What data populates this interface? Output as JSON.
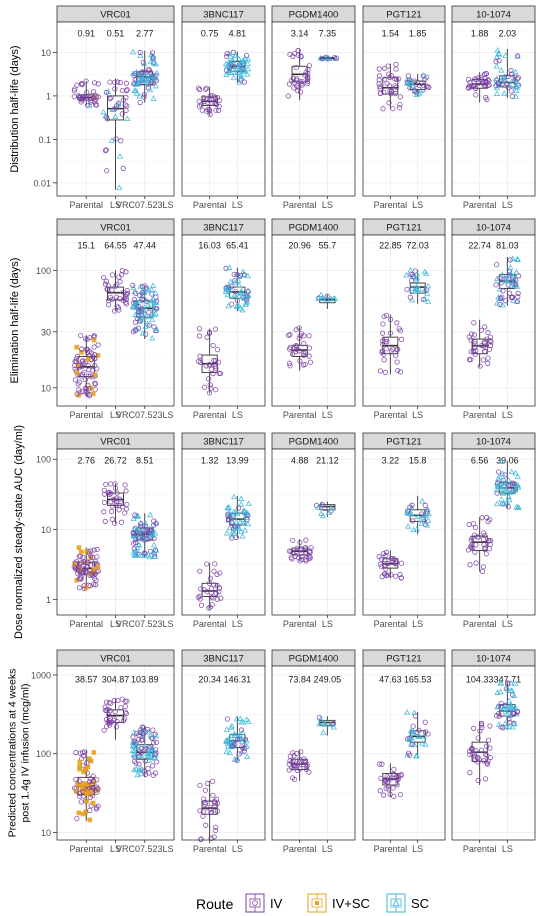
{
  "colors": {
    "IV": "#7B3FA5",
    "IV+SC": "#E6A11E",
    "SC": "#3BB7DA",
    "strip_fill": "#D9D9D9",
    "panel_border": "#333333",
    "grid": "#EBEBEB"
  },
  "legend": {
    "title": "Route",
    "items": [
      {
        "label": "IV",
        "key": "IV"
      },
      {
        "label": "IV+SC",
        "key": "IV+SC"
      },
      {
        "label": "SC",
        "key": "SC"
      }
    ]
  },
  "chart_data": [
    {
      "type": "box",
      "ylabel": "Distribution half-life (days)",
      "yscale": "log",
      "ylim": [
        0.005,
        50
      ],
      "yticks": [
        0.01,
        0.1,
        1,
        10
      ],
      "ytick_labels": [
        "0.01",
        "0.1",
        "1",
        "10"
      ],
      "panels": [
        {
          "title": "VRC01",
          "groups": [
            {
              "label": "Parental",
              "median_label": "0.91",
              "median": 0.91,
              "q1": 0.8,
              "q3": 1.05,
              "min": 0.6,
              "max": 2.2,
              "routes": {
                "IV": 0.8,
                "IV+SC": 0.1,
                "SC": 0.1
              },
              "n": 40
            },
            {
              "label": "LS",
              "median_label": "0.51",
              "median": 0.51,
              "q1": 0.28,
              "q3": 1.0,
              "min": 0.007,
              "max": 2.5,
              "routes": {
                "IV": 0.75,
                "SC": 0.25
              },
              "n": 40
            },
            {
              "label": "VRC07.523LS",
              "median_label": "2.77",
              "median": 2.77,
              "q1": 1.8,
              "q3": 3.6,
              "min": 0.7,
              "max": 11,
              "routes": {
                "IV": 0.5,
                "SC": 0.5
              },
              "n": 75
            }
          ]
        },
        {
          "title": "3BNC117",
          "groups": [
            {
              "label": "Parental",
              "median_label": "0.75",
              "median": 0.75,
              "q1": 0.6,
              "q3": 0.95,
              "min": 0.35,
              "max": 1.6,
              "routes": {
                "IV": 1
              },
              "n": 30
            },
            {
              "label": "LS",
              "median_label": "4.81",
              "median": 4.81,
              "q1": 3.7,
              "q3": 6.2,
              "min": 2.0,
              "max": 10.5,
              "routes": {
                "SC": 0.7,
                "IV": 0.3
              },
              "n": 55
            }
          ]
        },
        {
          "title": "PGDM1400",
          "groups": [
            {
              "label": "Parental",
              "median_label": "3.14",
              "median": 3.14,
              "q1": 2.1,
              "q3": 4.8,
              "min": 0.8,
              "max": 12,
              "routes": {
                "IV": 1
              },
              "n": 35
            },
            {
              "label": "LS",
              "median_label": "7.35",
              "median": 7.35,
              "q1": 7.1,
              "q3": 7.6,
              "min": 6.9,
              "max": 8.0,
              "routes": {
                "SC": 0.6,
                "IV": 0.4
              },
              "n": 10
            }
          ]
        },
        {
          "title": "PGT121",
          "groups": [
            {
              "label": "Parental",
              "median_label": "1.54",
              "median": 1.54,
              "q1": 1.1,
              "q3": 2.6,
              "min": 0.5,
              "max": 5.5,
              "routes": {
                "IV": 1
              },
              "n": 35
            },
            {
              "label": "LS",
              "median_label": "1.85",
              "median": 1.85,
              "q1": 1.4,
              "q3": 2.2,
              "min": 1.0,
              "max": 3.2,
              "routes": {
                "SC": 0.6,
                "IV": 0.4
              },
              "n": 30
            }
          ]
        },
        {
          "title": "10-1074",
          "groups": [
            {
              "label": "Parental",
              "median_label": "1.88",
              "median": 1.88,
              "q1": 1.5,
              "q3": 2.4,
              "min": 0.7,
              "max": 3.5,
              "routes": {
                "IV": 1
              },
              "n": 35
            },
            {
              "label": "LS",
              "median_label": "2.03",
              "median": 2.03,
              "q1": 1.6,
              "q3": 2.9,
              "min": 0.9,
              "max": 12,
              "routes": {
                "SC": 0.6,
                "IV": 0.4
              },
              "n": 50
            }
          ]
        }
      ]
    },
    {
      "type": "box",
      "ylabel": "Elimination half-life (days)",
      "yscale": "log",
      "ylim": [
        7,
        200
      ],
      "yticks": [
        10,
        30,
        100
      ],
      "ytick_labels": [
        "10",
        "30",
        "100"
      ],
      "panels": [
        {
          "title": "VRC01",
          "groups": [
            {
              "label": "Parental",
              "median_label": "15.1",
              "median": 15.1,
              "q1": 12.5,
              "q3": 18.5,
              "min": 8.5,
              "max": 28,
              "routes": {
                "IV": 0.85,
                "IV+SC": 0.15
              },
              "n": 80
            },
            {
              "label": "LS",
              "median_label": "64.55",
              "median": 64.55,
              "q1": 56,
              "q3": 72,
              "min": 45,
              "max": 100,
              "routes": {
                "IV": 1
              },
              "n": 35
            },
            {
              "label": "VRC07.523LS",
              "median_label": "47.44",
              "median": 47.44,
              "q1": 40,
              "q3": 55,
              "min": 26,
              "max": 75,
              "routes": {
                "IV": 0.5,
                "SC": 0.5
              },
              "n": 90
            }
          ]
        },
        {
          "title": "3BNC117",
          "groups": [
            {
              "label": "Parental",
              "median_label": "16.03",
              "median": 16.03,
              "q1": 13.5,
              "q3": 19,
              "min": 9,
              "max": 32,
              "routes": {
                "IV": 1
              },
              "n": 30
            },
            {
              "label": "LS",
              "median_label": "65.41",
              "median": 65.41,
              "q1": 58,
              "q3": 72,
              "min": 45,
              "max": 105,
              "routes": {
                "SC": 0.7,
                "IV": 0.3
              },
              "n": 55
            }
          ]
        },
        {
          "title": "PGDM1400",
          "groups": [
            {
              "label": "Parental",
              "median_label": "20.96",
              "median": 20.96,
              "q1": 18.5,
              "q3": 23,
              "min": 14,
              "max": 33,
              "routes": {
                "IV": 1
              },
              "n": 30
            },
            {
              "label": "LS",
              "median_label": "55.7",
              "median": 55.7,
              "q1": 53,
              "q3": 57,
              "min": 47,
              "max": 62,
              "routes": {
                "SC": 0.6,
                "IV": 0.4
              },
              "n": 10
            }
          ]
        },
        {
          "title": "PGT121",
          "groups": [
            {
              "label": "Parental",
              "median_label": "22.85",
              "median": 22.85,
              "q1": 19.5,
              "q3": 27,
              "min": 13,
              "max": 42,
              "routes": {
                "IV": 1
              },
              "n": 30
            },
            {
              "label": "LS",
              "median_label": "72.03",
              "median": 72.03,
              "q1": 64,
              "q3": 78,
              "min": 52,
              "max": 100,
              "routes": {
                "SC": 0.6,
                "IV": 0.4
              },
              "n": 30
            }
          ]
        },
        {
          "title": "10-1074",
          "groups": [
            {
              "label": "Parental",
              "median_label": "22.74",
              "median": 22.74,
              "q1": 19.5,
              "q3": 26,
              "min": 15,
              "max": 38,
              "routes": {
                "IV": 1
              },
              "n": 35
            },
            {
              "label": "LS",
              "median_label": "81.03",
              "median": 81.03,
              "q1": 70,
              "q3": 92,
              "min": 50,
              "max": 130,
              "routes": {
                "SC": 0.6,
                "IV": 0.4
              },
              "n": 55
            }
          ]
        }
      ]
    },
    {
      "type": "box",
      "ylabel": "Dose normalized steady-state AUC (day/ml)",
      "yscale": "log",
      "ylim": [
        0.6,
        140
      ],
      "yticks": [
        1,
        10,
        100
      ],
      "ytick_labels": [
        "1",
        "10",
        "100"
      ],
      "panels": [
        {
          "title": "VRC01",
          "groups": [
            {
              "label": "Parental",
              "median_label": "2.76",
              "median": 2.76,
              "q1": 2.3,
              "q3": 3.4,
              "min": 1.4,
              "max": 5.5,
              "routes": {
                "IV": 0.75,
                "IV+SC": 0.25
              },
              "n": 80
            },
            {
              "label": "LS",
              "median_label": "26.72",
              "median": 26.72,
              "q1": 22,
              "q3": 33,
              "min": 12,
              "max": 45,
              "routes": {
                "IV": 1
              },
              "n": 35
            },
            {
              "label": "VRC07.523LS",
              "median_label": "8.51",
              "median": 8.51,
              "q1": 7,
              "q3": 10.5,
              "min": 4,
              "max": 17,
              "routes": {
                "IV": 0.5,
                "SC": 0.5
              },
              "n": 90
            }
          ]
        },
        {
          "title": "3BNC117",
          "groups": [
            {
              "label": "Parental",
              "median_label": "1.32",
              "median": 1.32,
              "q1": 1.1,
              "q3": 1.7,
              "min": 0.75,
              "max": 3.3,
              "routes": {
                "IV": 1
              },
              "n": 30
            },
            {
              "label": "LS",
              "median_label": "13.99",
              "median": 13.99,
              "q1": 11.5,
              "q3": 17,
              "min": 7.5,
              "max": 30,
              "routes": {
                "SC": 0.7,
                "IV": 0.3
              },
              "n": 55
            }
          ]
        },
        {
          "title": "PGDM1400",
          "groups": [
            {
              "label": "Parental",
              "median_label": "4.88",
              "median": 4.88,
              "q1": 4.3,
              "q3": 5.4,
              "min": 3.5,
              "max": 7.2,
              "routes": {
                "IV": 1
              },
              "n": 30
            },
            {
              "label": "LS",
              "median_label": "21.12",
              "median": 21.12,
              "q1": 19,
              "q3": 22.5,
              "min": 15,
              "max": 25,
              "routes": {
                "SC": 0.6,
                "IV": 0.4
              },
              "n": 10
            }
          ]
        },
        {
          "title": "PGT121",
          "groups": [
            {
              "label": "Parental",
              "median_label": "3.22",
              "median": 3.22,
              "q1": 2.8,
              "q3": 3.8,
              "min": 2.0,
              "max": 5.0,
              "routes": {
                "IV": 1
              },
              "n": 30
            },
            {
              "label": "LS",
              "median_label": "15.8",
              "median": 15.8,
              "q1": 13,
              "q3": 19,
              "min": 8.5,
              "max": 30,
              "routes": {
                "SC": 0.6,
                "IV": 0.4
              },
              "n": 30
            }
          ]
        },
        {
          "title": "10-1074",
          "groups": [
            {
              "label": "Parental",
              "median_label": "6.56",
              "median": 6.56,
              "q1": 5,
              "q3": 8,
              "min": 2.5,
              "max": 15,
              "routes": {
                "IV": 1
              },
              "n": 35
            },
            {
              "label": "LS",
              "median_label": "39.06",
              "median": 39.06,
              "q1": 33,
              "q3": 46,
              "min": 20,
              "max": 95,
              "routes": {
                "SC": 0.6,
                "IV": 0.4
              },
              "n": 55
            }
          ]
        }
      ]
    },
    {
      "type": "box",
      "ylabel": "Predicted concentrations at 4 weeks post 1.4g IV infusion (mcg/ml)",
      "yscale": "log",
      "ylim": [
        8,
        1300
      ],
      "yticks": [
        10,
        100,
        1000
      ],
      "ytick_labels": [
        "10",
        "100",
        "1000"
      ],
      "panels": [
        {
          "title": "VRC01",
          "groups": [
            {
              "label": "Parental",
              "median_label": "38.57",
              "median": 38.57,
              "q1": 30,
              "q3": 50,
              "min": 14,
              "max": 110,
              "routes": {
                "IV": 0.75,
                "IV+SC": 0.25
              },
              "n": 80
            },
            {
              "label": "LS",
              "median_label": "304.87",
              "median": 304.87,
              "q1": 250,
              "q3": 360,
              "min": 150,
              "max": 500,
              "routes": {
                "IV": 1
              },
              "n": 35
            },
            {
              "label": "VRC07.523LS",
              "median_label": "103.89",
              "median": 103.89,
              "q1": 85,
              "q3": 130,
              "min": 50,
              "max": 220,
              "routes": {
                "IV": 0.5,
                "SC": 0.5
              },
              "n": 90
            }
          ]
        },
        {
          "title": "3BNC117",
          "groups": [
            {
              "label": "Parental",
              "median_label": "20.34",
              "median": 20.34,
              "q1": 17,
              "q3": 25,
              "min": 8,
              "max": 45,
              "routes": {
                "IV": 1
              },
              "n": 30
            },
            {
              "label": "LS",
              "median_label": "146.31",
              "median": 146.31,
              "q1": 120,
              "q3": 175,
              "min": 80,
              "max": 300,
              "routes": {
                "SC": 0.7,
                "IV": 0.3
              },
              "n": 55
            }
          ]
        },
        {
          "title": "PGDM1400",
          "groups": [
            {
              "label": "Parental",
              "median_label": "73.84",
              "median": 73.84,
              "q1": 63,
              "q3": 85,
              "min": 45,
              "max": 110,
              "routes": {
                "IV": 1
              },
              "n": 30
            },
            {
              "label": "LS",
              "median_label": "249.05",
              "median": 249.05,
              "q1": 230,
              "q3": 265,
              "min": 170,
              "max": 300,
              "routes": {
                "SC": 0.6,
                "IV": 0.4
              },
              "n": 10
            }
          ]
        },
        {
          "title": "PGT121",
          "groups": [
            {
              "label": "Parental",
              "median_label": "47.63",
              "median": 47.63,
              "q1": 40,
              "q3": 56,
              "min": 28,
              "max": 75,
              "routes": {
                "IV": 1
              },
              "n": 30
            },
            {
              "label": "LS",
              "median_label": "165.53",
              "median": 165.53,
              "q1": 140,
              "q3": 195,
              "min": 90,
              "max": 340,
              "routes": {
                "SC": 0.6,
                "IV": 0.4
              },
              "n": 30
            }
          ]
        },
        {
          "title": "10-1074",
          "groups": [
            {
              "label": "Parental",
              "median_label": "104.33",
              "median": 104.33,
              "q1": 80,
              "q3": 140,
              "min": 40,
              "max": 260,
              "routes": {
                "IV": 1
              },
              "n": 35
            },
            {
              "label": "LS",
              "median_label": "347.71",
              "median": 347.71,
              "q1": 300,
              "q3": 420,
              "min": 200,
              "max": 800,
              "routes": {
                "SC": 0.6,
                "IV": 0.4
              },
              "n": 55
            }
          ]
        }
      ]
    }
  ]
}
